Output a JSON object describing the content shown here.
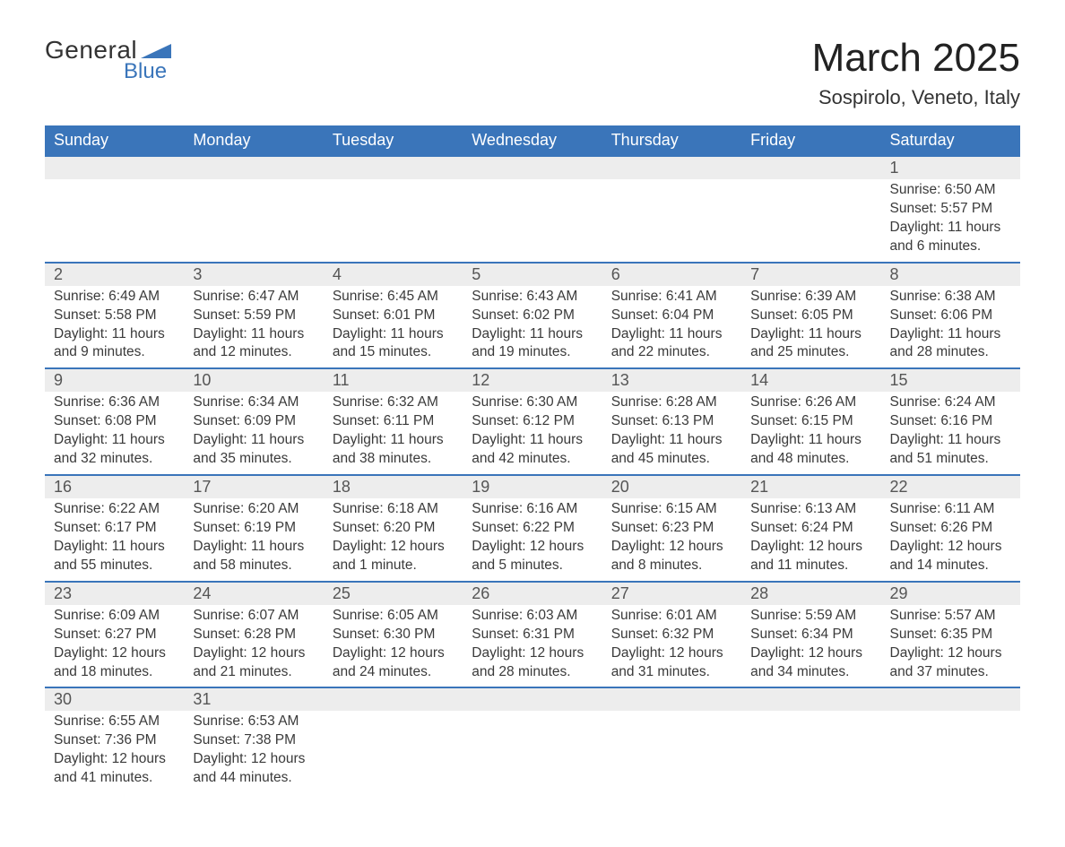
{
  "logo": {
    "text_general": "General",
    "text_blue": "Blue"
  },
  "title": "March 2025",
  "location": "Sospirolo, Veneto, Italy",
  "colors": {
    "header_bg": "#3a75ba",
    "header_text": "#ffffff",
    "daynum_bg": "#ededed",
    "row_border": "#3a75ba",
    "body_text": "#333333",
    "logo_blue": "#3a75ba"
  },
  "typography": {
    "title_fontsize": 44,
    "location_fontsize": 22,
    "header_fontsize": 18,
    "daynum_fontsize": 18,
    "detail_fontsize": 15.5
  },
  "day_headers": [
    "Sunday",
    "Monday",
    "Tuesday",
    "Wednesday",
    "Thursday",
    "Friday",
    "Saturday"
  ],
  "weeks": [
    [
      {
        "num": "",
        "sunrise": "",
        "sunset": "",
        "daylight1": "",
        "daylight2": ""
      },
      {
        "num": "",
        "sunrise": "",
        "sunset": "",
        "daylight1": "",
        "daylight2": ""
      },
      {
        "num": "",
        "sunrise": "",
        "sunset": "",
        "daylight1": "",
        "daylight2": ""
      },
      {
        "num": "",
        "sunrise": "",
        "sunset": "",
        "daylight1": "",
        "daylight2": ""
      },
      {
        "num": "",
        "sunrise": "",
        "sunset": "",
        "daylight1": "",
        "daylight2": ""
      },
      {
        "num": "",
        "sunrise": "",
        "sunset": "",
        "daylight1": "",
        "daylight2": ""
      },
      {
        "num": "1",
        "sunrise": "Sunrise: 6:50 AM",
        "sunset": "Sunset: 5:57 PM",
        "daylight1": "Daylight: 11 hours",
        "daylight2": "and 6 minutes."
      }
    ],
    [
      {
        "num": "2",
        "sunrise": "Sunrise: 6:49 AM",
        "sunset": "Sunset: 5:58 PM",
        "daylight1": "Daylight: 11 hours",
        "daylight2": "and 9 minutes."
      },
      {
        "num": "3",
        "sunrise": "Sunrise: 6:47 AM",
        "sunset": "Sunset: 5:59 PM",
        "daylight1": "Daylight: 11 hours",
        "daylight2": "and 12 minutes."
      },
      {
        "num": "4",
        "sunrise": "Sunrise: 6:45 AM",
        "sunset": "Sunset: 6:01 PM",
        "daylight1": "Daylight: 11 hours",
        "daylight2": "and 15 minutes."
      },
      {
        "num": "5",
        "sunrise": "Sunrise: 6:43 AM",
        "sunset": "Sunset: 6:02 PM",
        "daylight1": "Daylight: 11 hours",
        "daylight2": "and 19 minutes."
      },
      {
        "num": "6",
        "sunrise": "Sunrise: 6:41 AM",
        "sunset": "Sunset: 6:04 PM",
        "daylight1": "Daylight: 11 hours",
        "daylight2": "and 22 minutes."
      },
      {
        "num": "7",
        "sunrise": "Sunrise: 6:39 AM",
        "sunset": "Sunset: 6:05 PM",
        "daylight1": "Daylight: 11 hours",
        "daylight2": "and 25 minutes."
      },
      {
        "num": "8",
        "sunrise": "Sunrise: 6:38 AM",
        "sunset": "Sunset: 6:06 PM",
        "daylight1": "Daylight: 11 hours",
        "daylight2": "and 28 minutes."
      }
    ],
    [
      {
        "num": "9",
        "sunrise": "Sunrise: 6:36 AM",
        "sunset": "Sunset: 6:08 PM",
        "daylight1": "Daylight: 11 hours",
        "daylight2": "and 32 minutes."
      },
      {
        "num": "10",
        "sunrise": "Sunrise: 6:34 AM",
        "sunset": "Sunset: 6:09 PM",
        "daylight1": "Daylight: 11 hours",
        "daylight2": "and 35 minutes."
      },
      {
        "num": "11",
        "sunrise": "Sunrise: 6:32 AM",
        "sunset": "Sunset: 6:11 PM",
        "daylight1": "Daylight: 11 hours",
        "daylight2": "and 38 minutes."
      },
      {
        "num": "12",
        "sunrise": "Sunrise: 6:30 AM",
        "sunset": "Sunset: 6:12 PM",
        "daylight1": "Daylight: 11 hours",
        "daylight2": "and 42 minutes."
      },
      {
        "num": "13",
        "sunrise": "Sunrise: 6:28 AM",
        "sunset": "Sunset: 6:13 PM",
        "daylight1": "Daylight: 11 hours",
        "daylight2": "and 45 minutes."
      },
      {
        "num": "14",
        "sunrise": "Sunrise: 6:26 AM",
        "sunset": "Sunset: 6:15 PM",
        "daylight1": "Daylight: 11 hours",
        "daylight2": "and 48 minutes."
      },
      {
        "num": "15",
        "sunrise": "Sunrise: 6:24 AM",
        "sunset": "Sunset: 6:16 PM",
        "daylight1": "Daylight: 11 hours",
        "daylight2": "and 51 minutes."
      }
    ],
    [
      {
        "num": "16",
        "sunrise": "Sunrise: 6:22 AM",
        "sunset": "Sunset: 6:17 PM",
        "daylight1": "Daylight: 11 hours",
        "daylight2": "and 55 minutes."
      },
      {
        "num": "17",
        "sunrise": "Sunrise: 6:20 AM",
        "sunset": "Sunset: 6:19 PM",
        "daylight1": "Daylight: 11 hours",
        "daylight2": "and 58 minutes."
      },
      {
        "num": "18",
        "sunrise": "Sunrise: 6:18 AM",
        "sunset": "Sunset: 6:20 PM",
        "daylight1": "Daylight: 12 hours",
        "daylight2": "and 1 minute."
      },
      {
        "num": "19",
        "sunrise": "Sunrise: 6:16 AM",
        "sunset": "Sunset: 6:22 PM",
        "daylight1": "Daylight: 12 hours",
        "daylight2": "and 5 minutes."
      },
      {
        "num": "20",
        "sunrise": "Sunrise: 6:15 AM",
        "sunset": "Sunset: 6:23 PM",
        "daylight1": "Daylight: 12 hours",
        "daylight2": "and 8 minutes."
      },
      {
        "num": "21",
        "sunrise": "Sunrise: 6:13 AM",
        "sunset": "Sunset: 6:24 PM",
        "daylight1": "Daylight: 12 hours",
        "daylight2": "and 11 minutes."
      },
      {
        "num": "22",
        "sunrise": "Sunrise: 6:11 AM",
        "sunset": "Sunset: 6:26 PM",
        "daylight1": "Daylight: 12 hours",
        "daylight2": "and 14 minutes."
      }
    ],
    [
      {
        "num": "23",
        "sunrise": "Sunrise: 6:09 AM",
        "sunset": "Sunset: 6:27 PM",
        "daylight1": "Daylight: 12 hours",
        "daylight2": "and 18 minutes."
      },
      {
        "num": "24",
        "sunrise": "Sunrise: 6:07 AM",
        "sunset": "Sunset: 6:28 PM",
        "daylight1": "Daylight: 12 hours",
        "daylight2": "and 21 minutes."
      },
      {
        "num": "25",
        "sunrise": "Sunrise: 6:05 AM",
        "sunset": "Sunset: 6:30 PM",
        "daylight1": "Daylight: 12 hours",
        "daylight2": "and 24 minutes."
      },
      {
        "num": "26",
        "sunrise": "Sunrise: 6:03 AM",
        "sunset": "Sunset: 6:31 PM",
        "daylight1": "Daylight: 12 hours",
        "daylight2": "and 28 minutes."
      },
      {
        "num": "27",
        "sunrise": "Sunrise: 6:01 AM",
        "sunset": "Sunset: 6:32 PM",
        "daylight1": "Daylight: 12 hours",
        "daylight2": "and 31 minutes."
      },
      {
        "num": "28",
        "sunrise": "Sunrise: 5:59 AM",
        "sunset": "Sunset: 6:34 PM",
        "daylight1": "Daylight: 12 hours",
        "daylight2": "and 34 minutes."
      },
      {
        "num": "29",
        "sunrise": "Sunrise: 5:57 AM",
        "sunset": "Sunset: 6:35 PM",
        "daylight1": "Daylight: 12 hours",
        "daylight2": "and 37 minutes."
      }
    ],
    [
      {
        "num": "30",
        "sunrise": "Sunrise: 6:55 AM",
        "sunset": "Sunset: 7:36 PM",
        "daylight1": "Daylight: 12 hours",
        "daylight2": "and 41 minutes."
      },
      {
        "num": "31",
        "sunrise": "Sunrise: 6:53 AM",
        "sunset": "Sunset: 7:38 PM",
        "daylight1": "Daylight: 12 hours",
        "daylight2": "and 44 minutes."
      },
      {
        "num": "",
        "sunrise": "",
        "sunset": "",
        "daylight1": "",
        "daylight2": ""
      },
      {
        "num": "",
        "sunrise": "",
        "sunset": "",
        "daylight1": "",
        "daylight2": ""
      },
      {
        "num": "",
        "sunrise": "",
        "sunset": "",
        "daylight1": "",
        "daylight2": ""
      },
      {
        "num": "",
        "sunrise": "",
        "sunset": "",
        "daylight1": "",
        "daylight2": ""
      },
      {
        "num": "",
        "sunrise": "",
        "sunset": "",
        "daylight1": "",
        "daylight2": ""
      }
    ]
  ]
}
